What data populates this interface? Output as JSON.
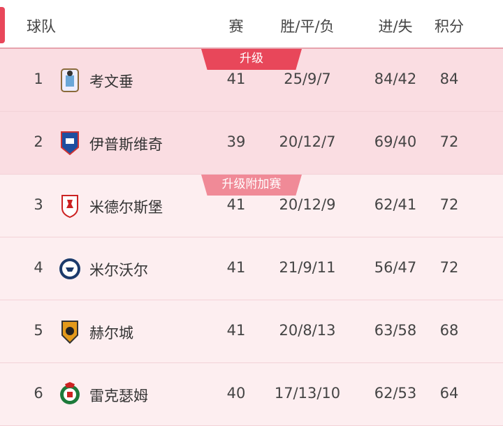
{
  "header": {
    "team": "球队",
    "played": "赛",
    "wdl": "胜/平/负",
    "goals": "进/失",
    "points": "积分"
  },
  "zones": [
    {
      "label": "升级",
      "color": "#e8475a"
    },
    {
      "label": "升级附加赛",
      "color": "#f08a97"
    }
  ],
  "rows": [
    {
      "rank": "1",
      "team": "考文垂",
      "played": "41",
      "wdl": "25/9/7",
      "goals": "84/42",
      "points": "84",
      "zone": "promo",
      "logo": "coventry-crest"
    },
    {
      "rank": "2",
      "team": "伊普斯维奇",
      "played": "39",
      "wdl": "20/12/7",
      "goals": "69/40",
      "points": "72",
      "zone": "promo",
      "logo": "ipswich-crest"
    },
    {
      "rank": "3",
      "team": "米德尔斯堡",
      "played": "41",
      "wdl": "20/12/9",
      "goals": "62/41",
      "points": "72",
      "zone": "playoff",
      "logo": "middlesbrough-crest"
    },
    {
      "rank": "4",
      "team": "米尔沃尔",
      "played": "41",
      "wdl": "21/9/11",
      "goals": "56/47",
      "points": "72",
      "zone": "playoff",
      "logo": "millwall-crest"
    },
    {
      "rank": "5",
      "team": "赫尔城",
      "played": "41",
      "wdl": "20/8/13",
      "goals": "63/58",
      "points": "68",
      "zone": "playoff",
      "logo": "hull-crest"
    },
    {
      "rank": "6",
      "team": "雷克瑟姆",
      "played": "40",
      "wdl": "17/13/10",
      "goals": "62/53",
      "points": "64",
      "zone": "playoff",
      "logo": "wrexham-crest"
    }
  ]
}
